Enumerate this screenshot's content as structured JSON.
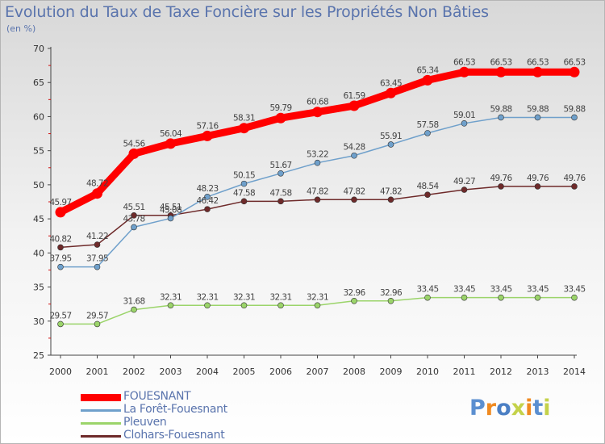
{
  "chart_data": {
    "type": "line",
    "title": "Evolution du Taux de Taxe Foncière sur les Propriétés Non Bâties",
    "subtitle": "(en %)",
    "x": [
      "2000",
      "2001",
      "2002",
      "2003",
      "2004",
      "2005",
      "2006",
      "2007",
      "2008",
      "2009",
      "2010",
      "2011",
      "2012",
      "2013",
      "2014"
    ],
    "ylim": [
      25,
      70
    ],
    "yticks": [
      25,
      30,
      35,
      40,
      45,
      50,
      55,
      60,
      65,
      70
    ],
    "grid": false,
    "legend_position": "bottom-left",
    "series": [
      {
        "name": "FOUESNANT",
        "color": "#ff0000",
        "values": [
          45.97,
          48.72,
          54.56,
          56.04,
          57.16,
          58.31,
          59.79,
          60.68,
          61.59,
          63.45,
          65.34,
          66.53,
          66.53,
          66.53,
          66.53
        ],
        "labels": [
          "45.97",
          "48.72",
          "54.56",
          "56.04",
          "57.16",
          "58.31",
          "59.79",
          "60.68",
          "61.59",
          "63.45",
          "65.34",
          "66.53",
          "66.53",
          "66.53",
          "66.53"
        ]
      },
      {
        "name": "La Forêt-Fouesnant",
        "color": "#6fa0cb",
        "values": [
          37.95,
          37.95,
          43.78,
          45.08,
          48.23,
          50.15,
          51.67,
          53.22,
          54.28,
          55.91,
          57.58,
          59.01,
          59.88,
          59.88,
          59.88
        ],
        "labels": [
          "37.95",
          "37.95",
          "43.78",
          "45.08",
          "48.23",
          "50.15",
          "51.67",
          "53.22",
          "54.28",
          "55.91",
          "57.58",
          "59.01",
          "59.88",
          "59.88",
          "59.88"
        ]
      },
      {
        "name": "Pleuven",
        "color": "#9bd46a",
        "values": [
          29.57,
          29.57,
          31.68,
          32.31,
          32.31,
          32.31,
          32.31,
          32.31,
          32.96,
          32.96,
          33.45,
          33.45,
          33.45,
          33.45,
          33.45
        ],
        "labels": [
          "29.57",
          "29.57",
          "31.68",
          "32.31",
          "32.31",
          "32.31",
          "32.31",
          "32.31",
          "32.96",
          "32.96",
          "33.45",
          "33.45",
          "33.45",
          "33.45",
          "33.45"
        ]
      },
      {
        "name": "Clohars-Fouesnant",
        "color": "#6e2a2a",
        "values": [
          40.82,
          41.22,
          45.51,
          45.51,
          46.42,
          47.58,
          47.58,
          47.82,
          47.82,
          47.82,
          48.54,
          49.27,
          49.76,
          49.76,
          49.76
        ],
        "labels": [
          "40.82",
          "41.22",
          "45.51",
          "45.51",
          "46.42",
          "47.58",
          "47.58",
          "47.82",
          "47.82",
          "47.82",
          "48.54",
          "49.27",
          "49.76",
          "49.76",
          "49.76"
        ]
      }
    ]
  },
  "logo": {
    "text": "Proxiti",
    "colors": [
      "#5b8fd0",
      "#f08a20",
      "#4b7fc4",
      "#c4d24a",
      "#f08a20",
      "#5b8fd0",
      "#c4d24a"
    ]
  }
}
